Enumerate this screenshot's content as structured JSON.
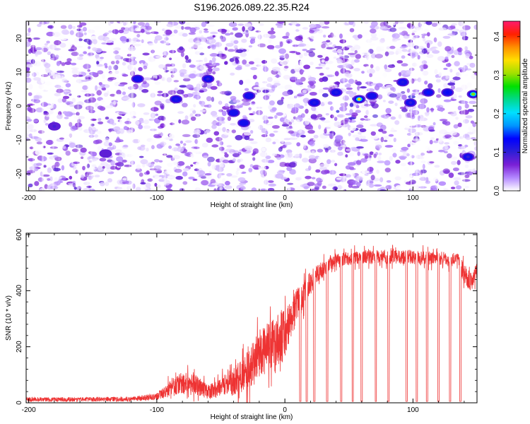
{
  "figure": {
    "title": "S196.2026.089.22.35.R24"
  },
  "chart_data": [
    {
      "type": "heatmap",
      "title": "S196.2026.089.22.35.R24",
      "xlabel": "Height of straight line (km)",
      "ylabel": "Frequency (Hz)",
      "xlim": [
        -202,
        150
      ],
      "ylim": [
        -25,
        25
      ],
      "x_ticks": [
        -200,
        -100,
        0,
        100
      ],
      "x_tick_labels": [
        "-200",
        "-100",
        "0",
        "100"
      ],
      "y_ticks": [
        -20,
        -10,
        0,
        10,
        20
      ],
      "y_tick_labels": [
        "-20",
        "-10",
        "0",
        "10",
        "20"
      ],
      "colorbar": {
        "label": "Normalized spectral amplitude",
        "range": [
          0,
          0.44
        ],
        "ticks": [
          0,
          0.1,
          0.2,
          0.3,
          0.4
        ],
        "tick_labels": [
          "0.0",
          "0.1",
          "0.2",
          "0.3",
          "0.4"
        ],
        "colormap": [
          "#ffffff",
          "#b388ff",
          "#7a1fd6",
          "#2d1fd6",
          "#0000ff",
          "#0096ff",
          "#00e0ff",
          "#00d98c",
          "#00e000",
          "#a0e000",
          "#ffe000",
          "#ff9000",
          "#ff2000",
          "#ff1a6e"
        ]
      },
      "notes": "Speckled spectral amplitude field; mostly low values (0.0–0.1, white/purple), scattered higher spots (up to ~0.35) concentrated near 0 Hz for heights between -50 and 150 km.",
      "hotspots": [
        {
          "x": 58,
          "y": 2,
          "v": 0.34
        },
        {
          "x": 147,
          "y": 3.5,
          "v": 0.3
        },
        {
          "x": -115,
          "y": 8,
          "v": 0.12
        },
        {
          "x": 112,
          "y": 4,
          "v": 0.14
        },
        {
          "x": 127,
          "y": 4,
          "v": 0.13
        },
        {
          "x": -40,
          "y": -2,
          "v": 0.12
        },
        {
          "x": 23,
          "y": 1,
          "v": 0.11
        },
        {
          "x": 143,
          "y": -15,
          "v": 0.1
        },
        {
          "x": -60,
          "y": 8,
          "v": 0.1
        },
        {
          "x": -180,
          "y": -6,
          "v": 0.09
        },
        {
          "x": -140,
          "y": -14,
          "v": 0.08
        },
        {
          "x": -28,
          "y": 3,
          "v": 0.12
        },
        {
          "x": 92,
          "y": 7,
          "v": 0.11
        },
        {
          "x": 68,
          "y": 3,
          "v": 0.12
        },
        {
          "x": 40,
          "y": 4,
          "v": 0.11
        },
        {
          "x": -32,
          "y": -5,
          "v": 0.12
        },
        {
          "x": 98,
          "y": 1,
          "v": 0.1
        },
        {
          "x": -85,
          "y": 2,
          "v": 0.11
        }
      ]
    },
    {
      "type": "line",
      "xlabel": "Height of straight line (km)",
      "ylabel": "SNR (10 * v/v)",
      "xlim": [
        -202,
        150
      ],
      "ylim": [
        0,
        605
      ],
      "x_ticks": [
        -200,
        -100,
        0,
        100
      ],
      "x_tick_labels": [
        "-200",
        "-100",
        "0",
        "100"
      ],
      "y_ticks": [
        0,
        200,
        400,
        600
      ],
      "y_tick_labels": [
        "0",
        "200",
        "400",
        "600"
      ],
      "series": [
        {
          "name": "SNR",
          "color": "#ee3333",
          "envelope_x": [
            -202,
            -160,
            -120,
            -100,
            -90,
            -80,
            -70,
            -60,
            -50,
            -40,
            -30,
            -20,
            -10,
            0,
            10,
            20,
            30,
            40,
            60,
            80,
            100,
            120,
            135,
            140,
            145,
            150
          ],
          "envelope_y": [
            12,
            12,
            13,
            22,
            50,
            70,
            65,
            38,
            55,
            75,
            110,
            170,
            210,
            250,
            350,
            430,
            480,
            510,
            520,
            520,
            520,
            515,
            510,
            460,
            430,
            470
          ],
          "noise_amplitude": [
            8,
            8,
            9,
            12,
            30,
            40,
            35,
            25,
            35,
            50,
            70,
            90,
            90,
            100,
            60,
            40,
            30,
            25,
            25,
            25,
            25,
            25,
            25,
            35,
            35,
            30
          ],
          "dropouts_x": [
            12,
            17,
            23,
            33,
            44,
            53,
            60,
            71,
            81,
            95,
            103,
            111,
            120,
            129,
            137
          ],
          "dropout_value": 5
        }
      ]
    }
  ]
}
